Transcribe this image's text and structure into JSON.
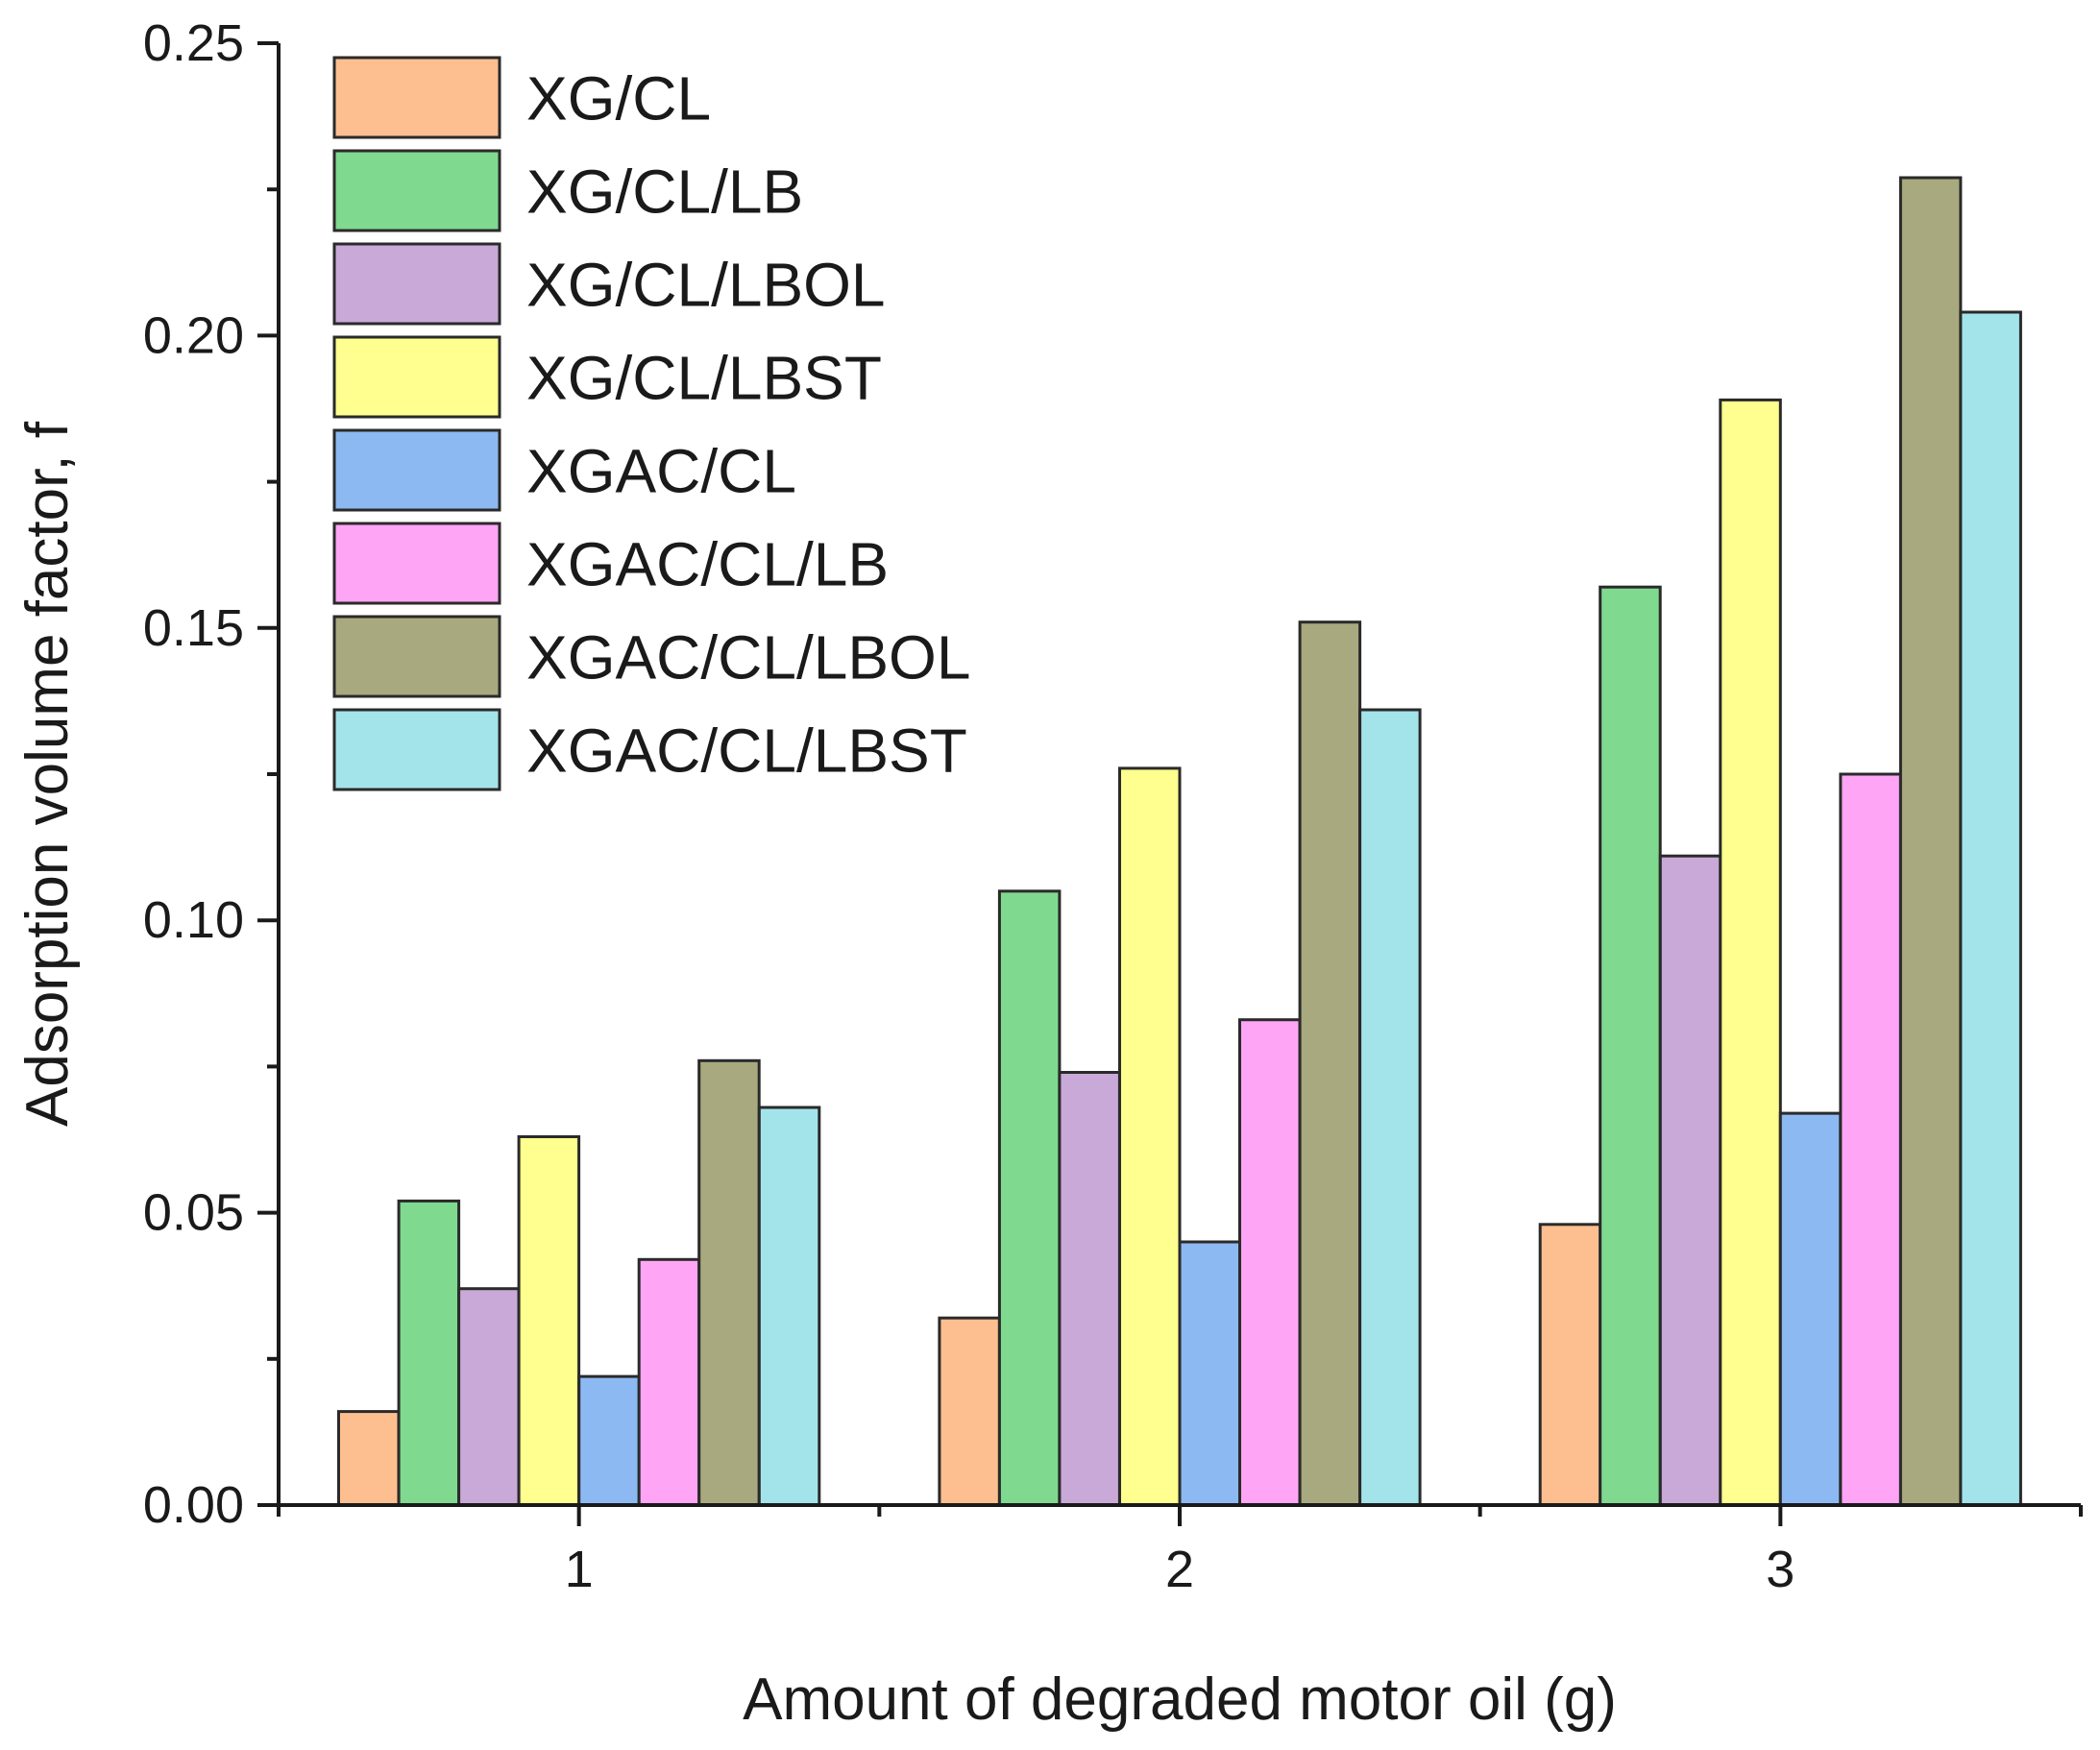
{
  "chart_data": {
    "type": "bar",
    "title": "",
    "xlabel": "Amount of degraded motor oil (g)",
    "ylabel": "Adsorption volume factor, f",
    "categories": [
      "1",
      "2",
      "3"
    ],
    "ylim": [
      0,
      0.25
    ],
    "yticks": [
      0.0,
      0.05,
      0.1,
      0.15,
      0.2,
      0.25
    ],
    "ytick_labels": [
      "0.00",
      "0.05",
      "0.10",
      "0.15",
      "0.20",
      "0.25"
    ],
    "legend_position": "top-left",
    "grid": false,
    "series": [
      {
        "name": "XG/CL",
        "color": "#FDBF8F",
        "values": [
          0.016,
          0.032,
          0.048
        ]
      },
      {
        "name": "XG/CL/LB",
        "color": "#7FD98F",
        "values": [
          0.052,
          0.105,
          0.157
        ]
      },
      {
        "name": "XG/CL/LBOL",
        "color": "#C9A9D8",
        "values": [
          0.037,
          0.074,
          0.111
        ]
      },
      {
        "name": "XG/CL/LBST",
        "color": "#FFFF8F",
        "values": [
          0.063,
          0.126,
          0.189
        ]
      },
      {
        "name": "XGAC/CL",
        "color": "#8DB9F2",
        "values": [
          0.022,
          0.045,
          0.067
        ]
      },
      {
        "name": "XGAC/CL/LB",
        "color": "#FFA5F5",
        "values": [
          0.042,
          0.083,
          0.125
        ]
      },
      {
        "name": "XGAC/CL/LBOL",
        "color": "#A8A97E",
        "values": [
          0.076,
          0.151,
          0.227
        ]
      },
      {
        "name": "XGAC/CL/LBST",
        "color": "#A3E4EB",
        "values": [
          0.068,
          0.136,
          0.204
        ]
      }
    ]
  }
}
